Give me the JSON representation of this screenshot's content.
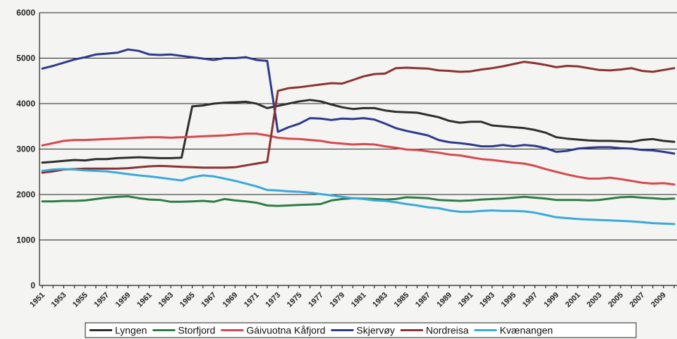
{
  "chart_data": {
    "type": "line",
    "title": "",
    "xlabel": "",
    "ylabel": "",
    "ylim": [
      0,
      6000
    ],
    "yticks": [
      0,
      1000,
      2000,
      3000,
      4000,
      5000,
      6000
    ],
    "grid": "horizontal",
    "legend_position": "bottom",
    "x": [
      1951,
      1952,
      1953,
      1954,
      1955,
      1956,
      1957,
      1958,
      1959,
      1960,
      1961,
      1962,
      1963,
      1964,
      1965,
      1966,
      1967,
      1968,
      1969,
      1970,
      1971,
      1972,
      1973,
      1974,
      1975,
      1976,
      1977,
      1978,
      1979,
      1980,
      1981,
      1982,
      1983,
      1984,
      1985,
      1986,
      1987,
      1988,
      1989,
      1990,
      1991,
      1992,
      1993,
      1994,
      1995,
      1996,
      1997,
      1998,
      1999,
      2000,
      2001,
      2002,
      2003,
      2004,
      2005,
      2006,
      2007,
      2008,
      2009,
      2010
    ],
    "xtick_labels": [
      "1951",
      "1953",
      "1955",
      "1957",
      "1959",
      "1961",
      "1963",
      "1965",
      "1967",
      "1969",
      "1971",
      "1973",
      "1975",
      "1977",
      "1979",
      "1981",
      "1983",
      "1985",
      "1987",
      "1989",
      "1991",
      "1993",
      "1995",
      "1997",
      "1999",
      "2001",
      "2003",
      "2005",
      "2007",
      "2009"
    ],
    "series": [
      {
        "name": "Lyngen",
        "color": "#2e2e2e",
        "values": [
          2700,
          2720,
          2740,
          2760,
          2750,
          2780,
          2780,
          2800,
          2810,
          2820,
          2810,
          2800,
          2800,
          2810,
          3940,
          3960,
          4000,
          4020,
          4030,
          4040,
          4000,
          3900,
          3950,
          4000,
          4050,
          4080,
          4050,
          3980,
          3920,
          3880,
          3900,
          3900,
          3850,
          3820,
          3810,
          3800,
          3750,
          3700,
          3620,
          3580,
          3600,
          3600,
          3520,
          3500,
          3480,
          3460,
          3420,
          3360,
          3260,
          3230,
          3210,
          3190,
          3180,
          3180,
          3170,
          3160,
          3200,
          3220,
          3180,
          3160
        ]
      },
      {
        "name": "Storfjord",
        "color": "#2e7d46",
        "values": [
          1850,
          1850,
          1860,
          1860,
          1870,
          1900,
          1930,
          1950,
          1960,
          1920,
          1890,
          1880,
          1840,
          1840,
          1850,
          1860,
          1840,
          1900,
          1870,
          1850,
          1820,
          1760,
          1750,
          1760,
          1770,
          1780,
          1790,
          1870,
          1900,
          1920,
          1910,
          1900,
          1890,
          1900,
          1940,
          1930,
          1920,
          1880,
          1870,
          1860,
          1870,
          1890,
          1900,
          1910,
          1930,
          1950,
          1930,
          1910,
          1880,
          1880,
          1880,
          1870,
          1880,
          1910,
          1940,
          1950,
          1930,
          1920,
          1900,
          1910
        ]
      },
      {
        "name": "Gáivuotna Kåfjord",
        "color": "#d9484f",
        "values": [
          3080,
          3130,
          3180,
          3200,
          3200,
          3210,
          3220,
          3230,
          3240,
          3250,
          3260,
          3260,
          3250,
          3260,
          3270,
          3280,
          3290,
          3300,
          3320,
          3340,
          3340,
          3300,
          3250,
          3230,
          3220,
          3200,
          3180,
          3140,
          3120,
          3100,
          3110,
          3100,
          3060,
          3030,
          2990,
          2980,
          2950,
          2920,
          2880,
          2860,
          2820,
          2780,
          2760,
          2730,
          2700,
          2680,
          2630,
          2560,
          2500,
          2440,
          2390,
          2350,
          2350,
          2370,
          2340,
          2300,
          2260,
          2240,
          2250,
          2220
        ]
      },
      {
        "name": "Skjervøy",
        "color": "#2e3a8c",
        "values": [
          4770,
          4830,
          4900,
          4970,
          5020,
          5080,
          5100,
          5120,
          5190,
          5160,
          5080,
          5070,
          5080,
          5050,
          5020,
          4990,
          4960,
          5000,
          5000,
          5020,
          4960,
          4940,
          3380,
          3480,
          3560,
          3680,
          3670,
          3640,
          3670,
          3660,
          3680,
          3650,
          3560,
          3460,
          3400,
          3350,
          3300,
          3200,
          3150,
          3130,
          3100,
          3060,
          3060,
          3090,
          3060,
          3090,
          3070,
          3020,
          2940,
          2960,
          3010,
          3030,
          3040,
          3040,
          3020,
          3010,
          2980,
          2970,
          2940,
          2900
        ]
      },
      {
        "name": "Nordreisa",
        "color": "#8b3232",
        "values": [
          2480,
          2510,
          2550,
          2560,
          2570,
          2570,
          2570,
          2570,
          2580,
          2600,
          2620,
          2630,
          2620,
          2610,
          2600,
          2590,
          2590,
          2590,
          2600,
          2640,
          2680,
          2720,
          4280,
          4340,
          4360,
          4390,
          4420,
          4450,
          4440,
          4520,
          4600,
          4650,
          4660,
          4780,
          4790,
          4780,
          4770,
          4730,
          4720,
          4700,
          4710,
          4750,
          4780,
          4820,
          4870,
          4920,
          4890,
          4850,
          4800,
          4830,
          4820,
          4780,
          4740,
          4730,
          4750,
          4780,
          4720,
          4700,
          4740,
          4780
        ]
      },
      {
        "name": "Kvænangen",
        "color": "#3ba9dc",
        "values": [
          2520,
          2550,
          2560,
          2550,
          2530,
          2520,
          2510,
          2480,
          2450,
          2420,
          2400,
          2370,
          2340,
          2310,
          2380,
          2420,
          2400,
          2350,
          2300,
          2240,
          2180,
          2100,
          2090,
          2070,
          2060,
          2040,
          2010,
          1980,
          1950,
          1920,
          1900,
          1870,
          1860,
          1830,
          1790,
          1760,
          1720,
          1700,
          1650,
          1620,
          1620,
          1640,
          1650,
          1640,
          1640,
          1630,
          1600,
          1550,
          1500,
          1480,
          1460,
          1450,
          1440,
          1430,
          1420,
          1410,
          1390,
          1370,
          1360,
          1350
        ]
      }
    ]
  }
}
